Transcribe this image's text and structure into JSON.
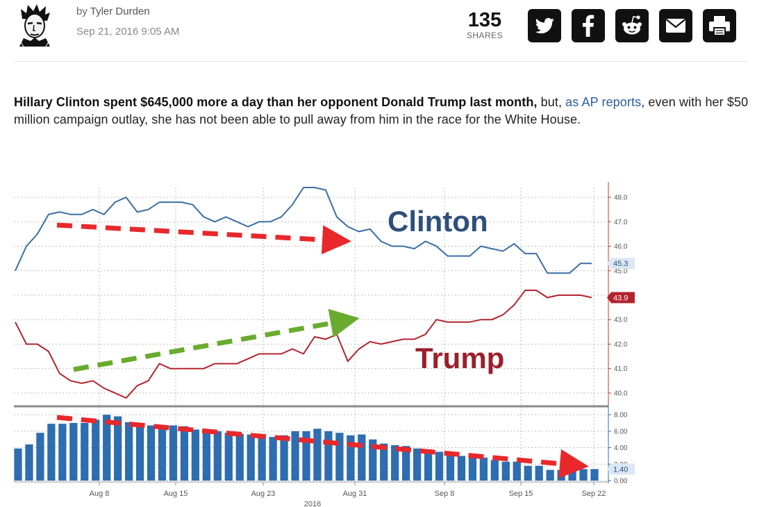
{
  "header": {
    "byline_prefix": "by",
    "author": "Tyler Durden",
    "date": "Sep 21, 2016 9:05 AM",
    "shares_count": "135",
    "shares_label": "SHARES",
    "social_icons": [
      "twitter-icon",
      "facebook-icon",
      "reddit-icon",
      "email-icon",
      "print-icon"
    ]
  },
  "article": {
    "lead_bold": "Hillary Clinton spent $645,000 more a day than her opponent Donald Trump last month,",
    "lead_mid": " but, ",
    "lead_link": "as AP reports",
    "lead_rest": ", even with her $50 million campaign outlay, she has not been able to pull away from him in the race for the White House."
  },
  "chart_data": {
    "type": "line",
    "x_ticks": [
      "Aug 8",
      "Aug 15",
      "Aug 23",
      "Aug 31",
      "Sep 8",
      "Sep 15",
      "Sep 22"
    ],
    "x_year": "2016",
    "annotations": {
      "clinton": "Clinton",
      "trump": "Trump"
    },
    "top_panel": {
      "yticks": [
        "48.0",
        "47.0",
        "46.0",
        "45.0",
        "44.0",
        "43.0",
        "42.0",
        "41.0",
        "40.0"
      ],
      "ylim": [
        39.6,
        48.4
      ],
      "series": [
        {
          "name": "Clinton",
          "color": "#3a6ea5",
          "last_label": "45.3",
          "values": [
            45.0,
            46.0,
            46.5,
            47.3,
            47.4,
            47.3,
            47.3,
            47.5,
            47.3,
            47.8,
            48.0,
            47.4,
            47.5,
            47.8,
            47.8,
            47.8,
            47.7,
            47.2,
            47.0,
            47.2,
            47.0,
            46.8,
            47.0,
            47.0,
            47.2,
            47.7,
            48.4,
            48.4,
            48.3,
            47.2,
            46.8,
            46.6,
            46.7,
            46.2,
            46.0,
            46.0,
            45.9,
            46.2,
            46.0,
            45.6,
            45.6,
            45.6,
            46.0,
            45.9,
            45.8,
            46.1,
            45.7,
            45.7,
            44.9,
            44.9,
            44.9,
            45.3,
            45.3
          ]
        },
        {
          "name": "Trump",
          "color": "#b2242e",
          "last_label": "43.9",
          "values": [
            42.9,
            42.0,
            42.0,
            41.7,
            40.8,
            40.5,
            40.4,
            40.5,
            40.2,
            40.0,
            39.8,
            40.3,
            40.5,
            41.2,
            41.0,
            41.0,
            41.0,
            41.0,
            41.2,
            41.2,
            41.2,
            41.4,
            41.6,
            41.6,
            41.6,
            41.8,
            41.6,
            42.3,
            42.2,
            42.4,
            41.3,
            41.8,
            42.1,
            42.0,
            42.1,
            42.2,
            42.2,
            42.4,
            43.0,
            42.9,
            42.9,
            42.9,
            43.0,
            43.0,
            43.2,
            43.6,
            44.2,
            44.2,
            43.9,
            44.0,
            44.0,
            44.0,
            43.9
          ]
        }
      ]
    },
    "bottom_panel": {
      "type": "bar",
      "yticks": [
        "8.00",
        "6.00",
        "4.00",
        "2.00",
        "0.00"
      ],
      "ylim": [
        0,
        8.6
      ],
      "color": "#2e6db0",
      "last_label": "1.40",
      "values": [
        3.9,
        4.4,
        5.8,
        6.9,
        6.9,
        7.0,
        7.0,
        7.4,
        8.0,
        7.8,
        7.1,
        6.9,
        6.7,
        6.7,
        6.7,
        6.6,
        6.2,
        6.1,
        6.0,
        5.8,
        5.7,
        5.6,
        5.6,
        5.3,
        5.5,
        6.0,
        6.0,
        6.3,
        6.0,
        5.8,
        5.5,
        5.6,
        5.0,
        4.5,
        4.3,
        4.2,
        3.9,
        3.8,
        3.5,
        3.3,
        3.0,
        3.0,
        2.8,
        2.5,
        2.3,
        2.3,
        1.8,
        1.8,
        1.3,
        1.3,
        1.6,
        1.4,
        1.4
      ]
    }
  }
}
